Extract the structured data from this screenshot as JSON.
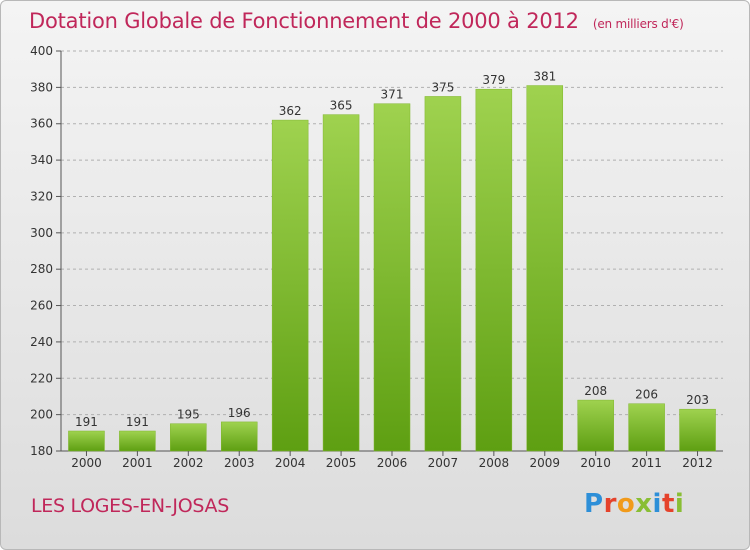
{
  "title": "Dotation Globale de Fonctionnement de 2000 à 2012",
  "subtitle": "(en milliers d'€)",
  "commune": "LES LOGES-EN-JOSAS",
  "logo_text": "Proxiti",
  "colors": {
    "title": "#c0275a",
    "bar_top": "#9fd24f",
    "bar_bottom": "#5e9f12",
    "grid": "#b0b0b0"
  },
  "chart_data": {
    "type": "bar",
    "title": "Dotation Globale de Fonctionnement de 2000 à 2012",
    "subtitle": "(en milliers d'€)",
    "xlabel": "",
    "ylabel": "",
    "categories": [
      "2000",
      "2001",
      "2002",
      "2003",
      "2004",
      "2005",
      "2006",
      "2007",
      "2008",
      "2009",
      "2010",
      "2011",
      "2012"
    ],
    "values": [
      191,
      191,
      195,
      196,
      362,
      365,
      371,
      375,
      379,
      381,
      208,
      206,
      203
    ],
    "ylim": [
      180,
      400
    ],
    "yticks": [
      180,
      200,
      220,
      240,
      260,
      280,
      300,
      320,
      340,
      360,
      380,
      400
    ],
    "grid": "horizontal dashed",
    "legend": "none",
    "data_labels": true
  }
}
